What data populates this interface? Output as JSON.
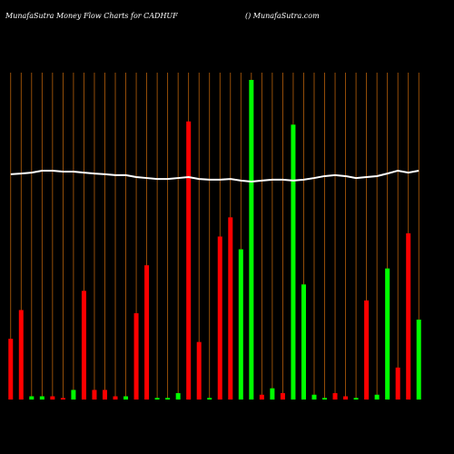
{
  "chart_data": {
    "type": "bar",
    "title": "MunafaSutra  Money Flow  Charts for CADHUF",
    "subtitle": "() MunafaSutra.com",
    "categories": [
      null,
      null,
      null,
      null,
      null,
      null,
      null,
      null,
      null,
      null,
      null,
      null,
      null,
      null,
      null,
      null,
      null,
      null,
      null,
      null,
      null,
      null,
      null,
      null,
      null,
      null,
      null,
      null,
      null,
      null,
      null,
      null,
      null,
      null,
      null,
      null,
      null,
      null,
      null,
      null
    ],
    "values": [
      19,
      28,
      1,
      1,
      1,
      0.5,
      3,
      34,
      3,
      3,
      1,
      1,
      27,
      42,
      0.5,
      0.5,
      2,
      87,
      18,
      0.5,
      51,
      57,
      47,
      100,
      1.5,
      3.5,
      2,
      86,
      36,
      1.5,
      0.5,
      2,
      1,
      0.5,
      31,
      1.5,
      41,
      10,
      52,
      25
    ],
    "colors": [
      "#ff0000",
      "#ff0000",
      "#00ff00",
      "#00ff00",
      "#ff0000",
      "#ff0000",
      "#00ff00",
      "#ff0000",
      "#ff0000",
      "#ff0000",
      "#ff0000",
      "#00ff00",
      "#ff0000",
      "#ff0000",
      "#00ff00",
      "#00ff00",
      "#00ff00",
      "#ff0000",
      "#ff0000",
      "#00ff00",
      "#ff0000",
      "#ff0000",
      "#00ff00",
      "#00ff00",
      "#ff0000",
      "#00ff00",
      "#ff0000",
      "#00ff00",
      "#00ff00",
      "#00ff00",
      "#00ff00",
      "#ff0000",
      "#ff0000",
      "#00ff00",
      "#ff0000",
      "#00ff00",
      "#00ff00",
      "#ff0000",
      "#ff0000",
      "#00ff00"
    ],
    "line": {
      "color": "#ffffff",
      "values": [
        70.5,
        70.7,
        71,
        71.6,
        71.6,
        71.3,
        71.3,
        71,
        70.7,
        70.5,
        70.2,
        70.2,
        69.6,
        69.3,
        69,
        69,
        69.3,
        69.6,
        69,
        68.8,
        68.8,
        69,
        68.5,
        68.2,
        68.5,
        68.8,
        68.8,
        68.5,
        68.8,
        69.3,
        69.9,
        70.2,
        69.9,
        69.3,
        69.6,
        69.9,
        70.7,
        71.6,
        71,
        71.6
      ]
    },
    "grid_color": "#b8600a",
    "ylim": [
      0,
      100
    ]
  }
}
